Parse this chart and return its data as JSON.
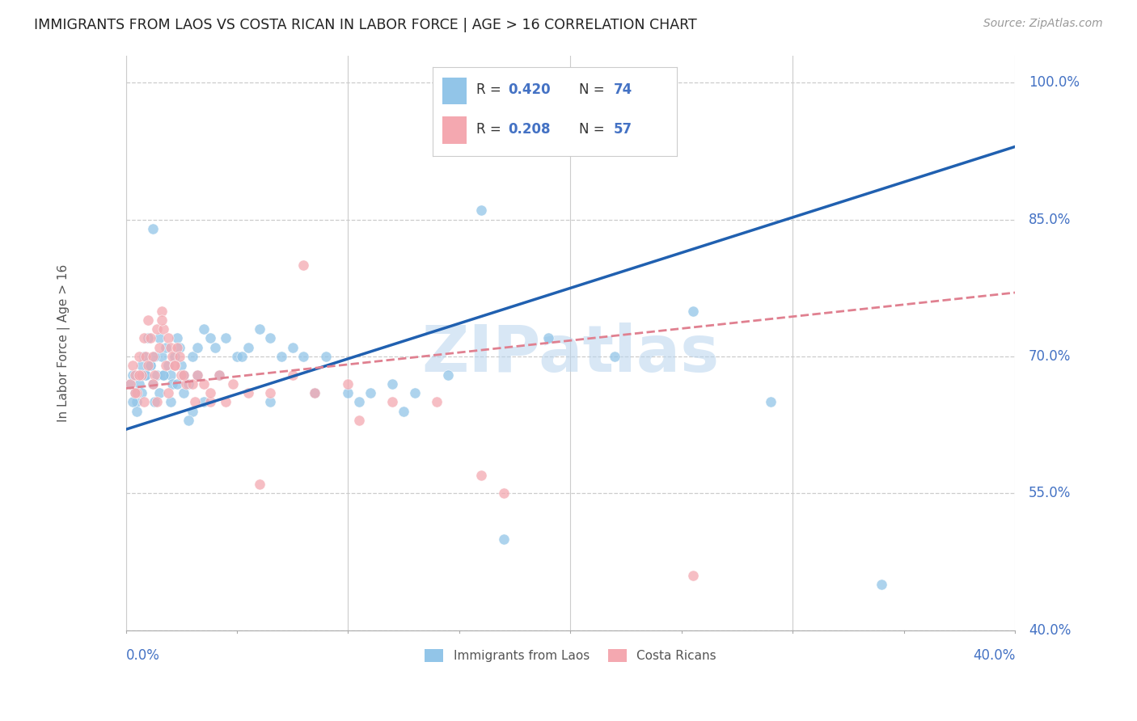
{
  "title": "IMMIGRANTS FROM LAOS VS COSTA RICAN IN LABOR FORCE | AGE > 16 CORRELATION CHART",
  "source": "Source: ZipAtlas.com",
  "ylabel": "In Labor Force | Age > 16",
  "legend_label1": "Immigrants from Laos",
  "legend_label2": "Costa Ricans",
  "blue_color": "#92c5e8",
  "pink_color": "#f4a8b0",
  "blue_line_color": "#2060b0",
  "pink_line_color": "#e08090",
  "axis_label_color": "#4472c4",
  "title_color": "#222222",
  "watermark": "ZIPatlas",
  "xmin": 0.0,
  "xmax": 40.0,
  "ymin": 40.0,
  "ymax": 103.0,
  "blue_line_x0": 0.0,
  "blue_line_y0": 62.0,
  "blue_line_x1": 40.0,
  "blue_line_y1": 93.0,
  "pink_line_x0": 0.0,
  "pink_line_y0": 66.5,
  "pink_line_x1": 40.0,
  "pink_line_y1": 77.0,
  "blue_scatter_x": [
    0.2,
    0.3,
    0.4,
    0.5,
    0.6,
    0.7,
    0.8,
    0.9,
    1.0,
    1.1,
    1.2,
    1.3,
    1.4,
    1.5,
    1.6,
    1.7,
    1.8,
    1.9,
    2.0,
    2.1,
    2.2,
    2.3,
    2.4,
    2.5,
    2.6,
    2.8,
    3.0,
    3.2,
    3.5,
    3.8,
    4.0,
    4.5,
    5.0,
    5.5,
    6.0,
    6.5,
    7.0,
    7.5,
    8.0,
    9.0,
    10.0,
    11.0,
    12.0,
    13.0,
    14.5,
    16.0,
    19.0,
    0.3,
    0.5,
    0.7,
    0.9,
    1.1,
    1.3,
    1.5,
    1.7,
    2.0,
    2.3,
    2.6,
    3.0,
    3.5,
    4.2,
    5.2,
    6.5,
    8.5,
    10.5,
    12.5,
    17.0,
    22.0,
    25.5,
    29.0,
    34.0,
    2.8,
    1.2,
    3.2
  ],
  "blue_scatter_y": [
    67,
    68,
    66,
    65,
    67,
    69,
    70,
    68,
    72,
    69,
    67,
    65,
    68,
    66,
    70,
    68,
    71,
    69,
    68,
    67,
    70,
    72,
    71,
    69,
    68,
    67,
    70,
    71,
    73,
    72,
    71,
    72,
    70,
    71,
    73,
    72,
    70,
    71,
    70,
    70,
    66,
    66,
    67,
    66,
    68,
    86,
    72,
    65,
    64,
    66,
    68,
    69,
    70,
    72,
    68,
    65,
    67,
    66,
    64,
    65,
    68,
    70,
    65,
    66,
    65,
    64,
    50,
    70,
    75,
    65,
    45,
    63,
    84,
    68
  ],
  "pink_scatter_x": [
    0.2,
    0.3,
    0.4,
    0.5,
    0.6,
    0.7,
    0.8,
    0.9,
    1.0,
    1.1,
    1.2,
    1.3,
    1.4,
    1.5,
    1.6,
    1.7,
    1.8,
    1.9,
    2.0,
    2.1,
    2.2,
    2.3,
    2.4,
    2.5,
    2.7,
    3.0,
    3.2,
    3.5,
    3.8,
    4.2,
    4.8,
    5.5,
    6.5,
    7.5,
    8.5,
    10.0,
    12.0,
    14.0,
    17.0,
    0.4,
    0.6,
    0.8,
    1.0,
    1.2,
    1.4,
    1.6,
    1.9,
    2.2,
    2.6,
    3.1,
    3.8,
    4.5,
    6.0,
    8.0,
    10.5,
    16.0,
    25.5
  ],
  "pink_scatter_y": [
    67,
    69,
    68,
    66,
    70,
    68,
    72,
    70,
    74,
    72,
    70,
    68,
    73,
    71,
    75,
    73,
    69,
    72,
    71,
    70,
    69,
    71,
    70,
    68,
    67,
    67,
    68,
    67,
    65,
    68,
    67,
    66,
    66,
    68,
    66,
    67,
    65,
    65,
    55,
    66,
    68,
    65,
    69,
    67,
    65,
    74,
    66,
    69,
    68,
    65,
    66,
    65,
    56,
    80,
    63,
    57,
    46
  ]
}
